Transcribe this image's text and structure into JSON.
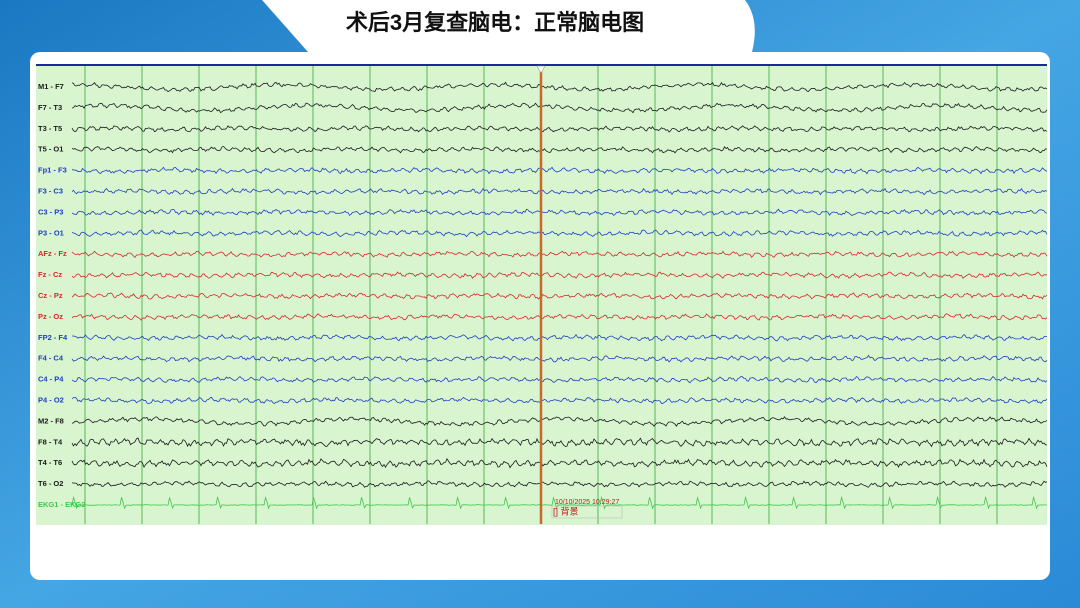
{
  "title": "术后3月复查脑电：正常脑电图",
  "channels": [
    {
      "label": "M1 - F7",
      "color": "#1a1a1a"
    },
    {
      "label": "F7 - T3",
      "color": "#1a1a1a"
    },
    {
      "label": "T3 - T5",
      "color": "#1a1a1a"
    },
    {
      "label": "T5 - O1",
      "color": "#1a1a1a"
    },
    {
      "label": "Fp1 - F3",
      "color": "#1f3fbf"
    },
    {
      "label": "F3 - C3",
      "color": "#1f3fbf"
    },
    {
      "label": "C3 - P3",
      "color": "#1f3fbf"
    },
    {
      "label": "P3 - O1",
      "color": "#1f3fbf"
    },
    {
      "label": "AFz - Fz",
      "color": "#d42a2a"
    },
    {
      "label": "Fz - Cz",
      "color": "#d42a2a"
    },
    {
      "label": "Cz - Pz",
      "color": "#d42a2a"
    },
    {
      "label": "Pz - Oz",
      "color": "#d42a2a"
    },
    {
      "label": "FP2 - F4",
      "color": "#1f3fbf"
    },
    {
      "label": "F4 - C4",
      "color": "#1f3fbf"
    },
    {
      "label": "C4 - P4",
      "color": "#1f3fbf"
    },
    {
      "label": "P4 - O2",
      "color": "#1f3fbf"
    },
    {
      "label": "M2 - F8",
      "color": "#1a1a1a"
    },
    {
      "label": "F8 - T4",
      "color": "#1a1a1a"
    },
    {
      "label": "T4 - T6",
      "color": "#1a1a1a"
    },
    {
      "label": "T6 - O2",
      "color": "#1a1a1a"
    },
    {
      "label": "EKG1 - EKG2",
      "color": "#3cc84a"
    }
  ],
  "marker": {
    "timestamp": "10/10/2025 10:29:27",
    "label": "[] 背景"
  }
}
